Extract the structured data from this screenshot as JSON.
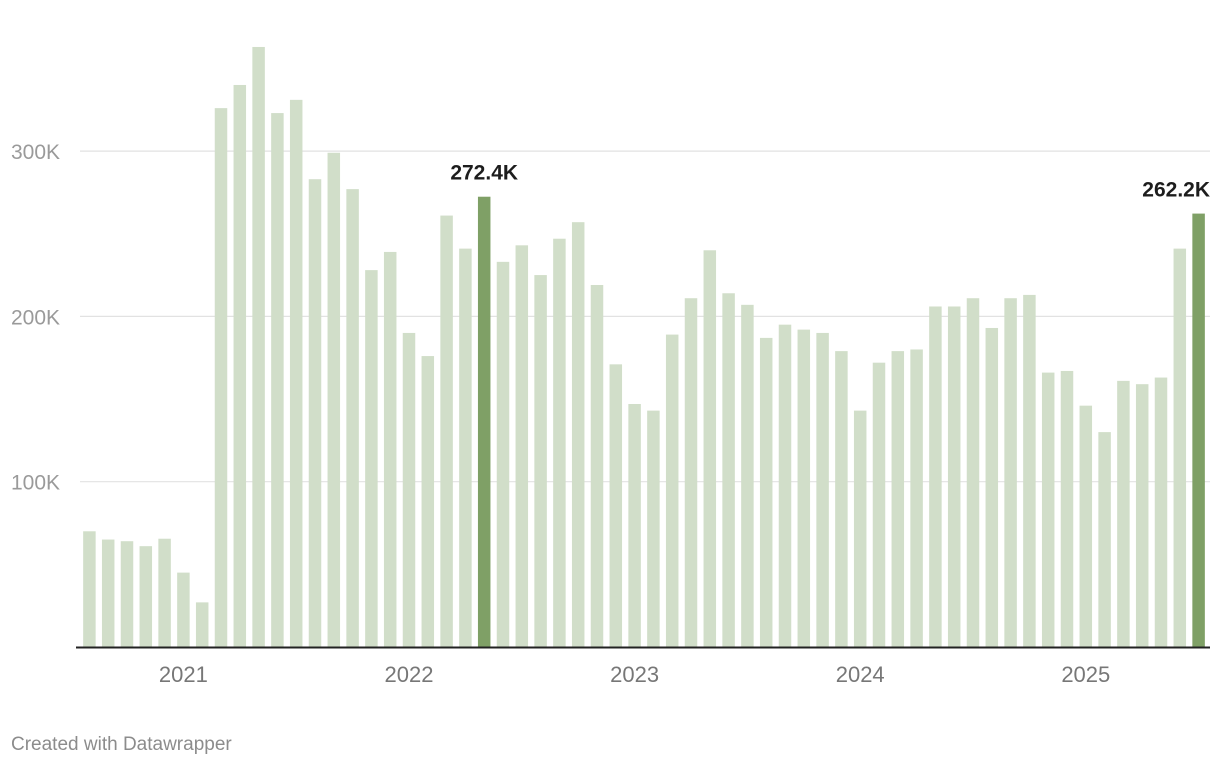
{
  "chart_data": {
    "type": "bar",
    "title": "",
    "xlabel": "",
    "ylabel": "",
    "ylim": [
      0,
      365000
    ],
    "yticks": [
      {
        "value": 100000,
        "label": "100K"
      },
      {
        "value": 200000,
        "label": "200K"
      },
      {
        "value": 300000,
        "label": "300K"
      }
    ],
    "year_labels": [
      {
        "label": "2021",
        "index": 5
      },
      {
        "label": "2022",
        "index": 17
      },
      {
        "label": "2023",
        "index": 29
      },
      {
        "label": "2024",
        "index": 41
      },
      {
        "label": "2025",
        "index": 53
      }
    ],
    "start_month": "2020-08",
    "values": [
      70000,
      65000,
      64000,
      61000,
      65500,
      45000,
      27000,
      326000,
      340000,
      363000,
      323000,
      331000,
      283000,
      299000,
      277000,
      228000,
      239000,
      190000,
      176000,
      261000,
      241000,
      272400,
      233000,
      243000,
      225000,
      247000,
      257000,
      219000,
      171000,
      147000,
      143000,
      189000,
      211000,
      240000,
      214000,
      207000,
      187000,
      195000,
      192000,
      190000,
      179000,
      143000,
      172000,
      179000,
      180000,
      206000,
      206000,
      211000,
      193000,
      211000,
      213000,
      166000,
      167000,
      146000,
      130000,
      161000,
      159000,
      163000,
      241000,
      262200
    ],
    "highlight": [
      {
        "index": 21,
        "label": "272.4K"
      },
      {
        "index": 59,
        "label": "262.2K"
      }
    ],
    "colors": {
      "bar": "#d1dec9",
      "highlight": "#7fa066",
      "grid": "#e2e2e2",
      "axis": "#222222"
    }
  },
  "footer": {
    "credit": "Created with Datawrapper"
  }
}
